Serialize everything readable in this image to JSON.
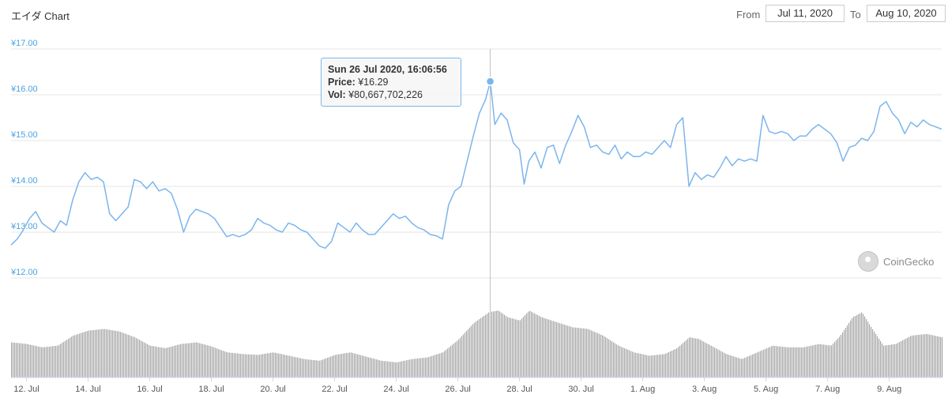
{
  "header": {
    "title": "エイダ Chart",
    "from_label": "From",
    "from_value": "Jul 11, 2020",
    "to_label": "To",
    "to_value": "Aug 10, 2020"
  },
  "tooltip": {
    "date": "Sun 26 Jul 2020, 16:06:56",
    "price_label": "Price:",
    "price_value": "¥16.29",
    "vol_label": "Vol:",
    "vol_value": "¥80,667,702,226"
  },
  "watermark": "CoinGecko",
  "colors": {
    "line": "#7cb5ec",
    "volume": "#a6a6a6",
    "axis_text": "#4aa3df"
  },
  "chart_data": {
    "type": "line",
    "title": "エイダ Chart",
    "y_ticks": [
      "¥12.00",
      "¥13.00",
      "¥14.00",
      "¥15.00",
      "¥16.00",
      "¥17.00"
    ],
    "y_range": [
      12,
      17
    ],
    "x_ticks": [
      "12. Jul",
      "14. Jul",
      "16. Jul",
      "18. Jul",
      "20. Jul",
      "22. Jul",
      "24. Jul",
      "26. Jul",
      "28. Jul",
      "30. Jul",
      "1. Aug",
      "3. Aug",
      "5. Aug",
      "7. Aug",
      "9. Aug"
    ],
    "x_range_days": [
      11.5,
      41.7
    ],
    "grid": true,
    "legend": "none",
    "price_series": {
      "name": "Price",
      "points": [
        [
          11.5,
          12.72
        ],
        [
          11.7,
          12.85
        ],
        [
          11.9,
          13.05
        ],
        [
          12.1,
          13.3
        ],
        [
          12.3,
          13.45
        ],
        [
          12.5,
          13.2
        ],
        [
          12.7,
          13.1
        ],
        [
          12.9,
          13.0
        ],
        [
          13.1,
          13.25
        ],
        [
          13.3,
          13.15
        ],
        [
          13.5,
          13.7
        ],
        [
          13.7,
          14.1
        ],
        [
          13.9,
          14.3
        ],
        [
          14.1,
          14.15
        ],
        [
          14.3,
          14.2
        ],
        [
          14.5,
          14.1
        ],
        [
          14.7,
          13.4
        ],
        [
          14.9,
          13.25
        ],
        [
          15.1,
          13.4
        ],
        [
          15.3,
          13.55
        ],
        [
          15.5,
          14.15
        ],
        [
          15.7,
          14.1
        ],
        [
          15.9,
          13.95
        ],
        [
          16.1,
          14.1
        ],
        [
          16.3,
          13.9
        ],
        [
          16.5,
          13.95
        ],
        [
          16.7,
          13.85
        ],
        [
          16.9,
          13.5
        ],
        [
          17.1,
          13.0
        ],
        [
          17.3,
          13.35
        ],
        [
          17.5,
          13.5
        ],
        [
          17.7,
          13.45
        ],
        [
          17.9,
          13.4
        ],
        [
          18.1,
          13.3
        ],
        [
          18.3,
          13.1
        ],
        [
          18.5,
          12.9
        ],
        [
          18.7,
          12.95
        ],
        [
          18.9,
          12.9
        ],
        [
          19.1,
          12.95
        ],
        [
          19.3,
          13.05
        ],
        [
          19.5,
          13.3
        ],
        [
          19.7,
          13.2
        ],
        [
          19.9,
          13.15
        ],
        [
          20.1,
          13.05
        ],
        [
          20.3,
          13.0
        ],
        [
          20.5,
          13.2
        ],
        [
          20.7,
          13.15
        ],
        [
          20.9,
          13.05
        ],
        [
          21.1,
          13.0
        ],
        [
          21.3,
          12.85
        ],
        [
          21.5,
          12.7
        ],
        [
          21.7,
          12.65
        ],
        [
          21.9,
          12.8
        ],
        [
          22.1,
          13.2
        ],
        [
          22.3,
          13.1
        ],
        [
          22.5,
          13.0
        ],
        [
          22.7,
          13.2
        ],
        [
          22.9,
          13.05
        ],
        [
          23.1,
          12.95
        ],
        [
          23.3,
          12.95
        ],
        [
          23.5,
          13.1
        ],
        [
          23.7,
          13.25
        ],
        [
          23.9,
          13.4
        ],
        [
          24.1,
          13.3
        ],
        [
          24.3,
          13.35
        ],
        [
          24.5,
          13.2
        ],
        [
          24.7,
          13.1
        ],
        [
          24.9,
          13.05
        ],
        [
          25.1,
          12.95
        ],
        [
          25.3,
          12.92
        ],
        [
          25.5,
          12.85
        ],
        [
          25.7,
          13.6
        ],
        [
          25.9,
          13.9
        ],
        [
          26.1,
          14.0
        ],
        [
          26.3,
          14.55
        ],
        [
          26.5,
          15.1
        ],
        [
          26.7,
          15.6
        ],
        [
          26.9,
          15.9
        ],
        [
          27.05,
          16.29
        ],
        [
          27.2,
          15.35
        ],
        [
          27.4,
          15.6
        ],
        [
          27.6,
          15.45
        ],
        [
          27.8,
          14.95
        ],
        [
          28.0,
          14.8
        ],
        [
          28.15,
          14.05
        ],
        [
          28.3,
          14.55
        ],
        [
          28.5,
          14.75
        ],
        [
          28.7,
          14.4
        ],
        [
          28.9,
          14.85
        ],
        [
          29.1,
          14.9
        ],
        [
          29.3,
          14.5
        ],
        [
          29.5,
          14.9
        ],
        [
          29.7,
          15.2
        ],
        [
          29.9,
          15.55
        ],
        [
          30.1,
          15.3
        ],
        [
          30.3,
          14.85
        ],
        [
          30.5,
          14.9
        ],
        [
          30.7,
          14.75
        ],
        [
          30.9,
          14.7
        ],
        [
          31.1,
          14.9
        ],
        [
          31.3,
          14.6
        ],
        [
          31.5,
          14.75
        ],
        [
          31.7,
          14.65
        ],
        [
          31.9,
          14.65
        ],
        [
          32.1,
          14.75
        ],
        [
          32.3,
          14.7
        ],
        [
          32.5,
          14.85
        ],
        [
          32.7,
          15.0
        ],
        [
          32.9,
          14.85
        ],
        [
          33.1,
          15.35
        ],
        [
          33.3,
          15.5
        ],
        [
          33.5,
          14.0
        ],
        [
          33.7,
          14.3
        ],
        [
          33.9,
          14.15
        ],
        [
          34.1,
          14.25
        ],
        [
          34.3,
          14.2
        ],
        [
          34.5,
          14.4
        ],
        [
          34.7,
          14.65
        ],
        [
          34.9,
          14.45
        ],
        [
          35.1,
          14.6
        ],
        [
          35.3,
          14.55
        ],
        [
          35.5,
          14.6
        ],
        [
          35.7,
          14.55
        ],
        [
          35.9,
          15.55
        ],
        [
          36.1,
          15.2
        ],
        [
          36.3,
          15.15
        ],
        [
          36.5,
          15.2
        ],
        [
          36.7,
          15.15
        ],
        [
          36.9,
          15.0
        ],
        [
          37.1,
          15.1
        ],
        [
          37.3,
          15.1
        ],
        [
          37.5,
          15.25
        ],
        [
          37.7,
          15.35
        ],
        [
          37.9,
          15.25
        ],
        [
          38.1,
          15.15
        ],
        [
          38.3,
          14.95
        ],
        [
          38.5,
          14.55
        ],
        [
          38.7,
          14.85
        ],
        [
          38.9,
          14.9
        ],
        [
          39.1,
          15.05
        ],
        [
          39.3,
          15.0
        ],
        [
          39.5,
          15.2
        ],
        [
          39.7,
          15.75
        ],
        [
          39.9,
          15.85
        ],
        [
          40.1,
          15.6
        ],
        [
          40.3,
          15.45
        ],
        [
          40.5,
          15.15
        ],
        [
          40.7,
          15.4
        ],
        [
          40.9,
          15.3
        ],
        [
          41.1,
          15.45
        ],
        [
          41.3,
          15.35
        ],
        [
          41.5,
          15.3
        ],
        [
          41.7,
          15.25
        ]
      ]
    },
    "volume_series": {
      "name": "Vol",
      "relative_points": [
        [
          11.5,
          0.42
        ],
        [
          12.0,
          0.4
        ],
        [
          12.5,
          0.36
        ],
        [
          13.0,
          0.38
        ],
        [
          13.5,
          0.5
        ],
        [
          14.0,
          0.56
        ],
        [
          14.5,
          0.58
        ],
        [
          15.0,
          0.55
        ],
        [
          15.5,
          0.48
        ],
        [
          16.0,
          0.38
        ],
        [
          16.5,
          0.35
        ],
        [
          17.0,
          0.4
        ],
        [
          17.5,
          0.42
        ],
        [
          18.0,
          0.37
        ],
        [
          18.5,
          0.3
        ],
        [
          19.0,
          0.28
        ],
        [
          19.5,
          0.27
        ],
        [
          20.0,
          0.3
        ],
        [
          20.5,
          0.26
        ],
        [
          21.0,
          0.22
        ],
        [
          21.5,
          0.2
        ],
        [
          22.0,
          0.27
        ],
        [
          22.5,
          0.3
        ],
        [
          23.0,
          0.25
        ],
        [
          23.5,
          0.2
        ],
        [
          24.0,
          0.18
        ],
        [
          24.5,
          0.22
        ],
        [
          25.0,
          0.24
        ],
        [
          25.5,
          0.3
        ],
        [
          26.0,
          0.45
        ],
        [
          26.5,
          0.65
        ],
        [
          27.0,
          0.78
        ],
        [
          27.3,
          0.8
        ],
        [
          27.6,
          0.72
        ],
        [
          28.0,
          0.68
        ],
        [
          28.3,
          0.8
        ],
        [
          28.7,
          0.72
        ],
        [
          29.2,
          0.66
        ],
        [
          29.7,
          0.6
        ],
        [
          30.2,
          0.58
        ],
        [
          30.7,
          0.5
        ],
        [
          31.2,
          0.38
        ],
        [
          31.7,
          0.3
        ],
        [
          32.2,
          0.26
        ],
        [
          32.7,
          0.28
        ],
        [
          33.1,
          0.35
        ],
        [
          33.5,
          0.48
        ],
        [
          33.8,
          0.46
        ],
        [
          34.2,
          0.38
        ],
        [
          34.7,
          0.28
        ],
        [
          35.2,
          0.22
        ],
        [
          35.7,
          0.3
        ],
        [
          36.2,
          0.38
        ],
        [
          36.7,
          0.36
        ],
        [
          37.2,
          0.36
        ],
        [
          37.7,
          0.4
        ],
        [
          38.1,
          0.38
        ],
        [
          38.4,
          0.5
        ],
        [
          38.8,
          0.72
        ],
        [
          39.1,
          0.78
        ],
        [
          39.4,
          0.6
        ],
        [
          39.8,
          0.38
        ],
        [
          40.2,
          0.4
        ],
        [
          40.7,
          0.5
        ],
        [
          41.2,
          0.52
        ],
        [
          41.7,
          0.48
        ]
      ]
    }
  }
}
